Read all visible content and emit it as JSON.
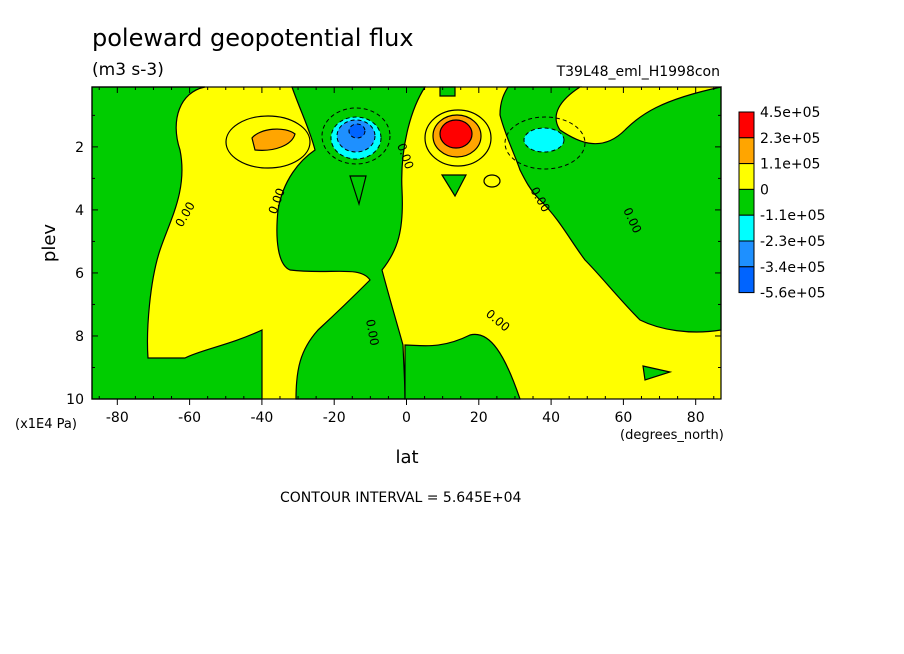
{
  "chart_data": {
    "type": "heatmap",
    "title": "poleward geopotential flux",
    "units": "(m3 s-3)",
    "run_label": "T39L48_eml_H1998con",
    "xlabel": "lat",
    "x_units": "(degrees_north)",
    "ylabel": "plev",
    "y_units": "(x1E4 Pa)",
    "xlim": [
      -87,
      87
    ],
    "ylim": [
      10,
      0.1
    ],
    "x_ticks": [
      -80,
      -60,
      -40,
      -20,
      0,
      20,
      40,
      60,
      80
    ],
    "y_ticks": [
      2,
      4,
      6,
      8,
      10
    ],
    "x_tick_labels": [
      "-80",
      "-60",
      "-40",
      "-20",
      "0",
      "20",
      "40",
      "60",
      "80"
    ],
    "y_tick_labels": [
      "2",
      "4",
      "6",
      "8",
      "10"
    ],
    "contour_interval_text": "CONTOUR INTERVAL = 5.645E+04",
    "zero_contour_label": "0.00",
    "legend": {
      "labels": [
        "4.5e+05",
        "2.3e+05",
        "1.1e+05",
        "0",
        "-1.1e+05",
        "-2.3e+05",
        "-3.4e+05",
        "-5.6e+05"
      ],
      "colors": [
        "#ff0000",
        "#ffa500",
        "#ffff00",
        "#00cc00",
        "#00ffff",
        "#1e90ff",
        "#0064ff"
      ]
    },
    "features": [
      {
        "kind": "max",
        "lat": 14,
        "plev": 1.5,
        "level": 450000.0
      },
      {
        "kind": "max",
        "lat": -38,
        "plev": 1.8,
        "level": 230000.0
      },
      {
        "kind": "min",
        "lat": -14,
        "plev": 1.6,
        "level": -340000.0
      },
      {
        "kind": "min",
        "lat": 38,
        "plev": 1.8,
        "level": -230000.0
      }
    ]
  }
}
